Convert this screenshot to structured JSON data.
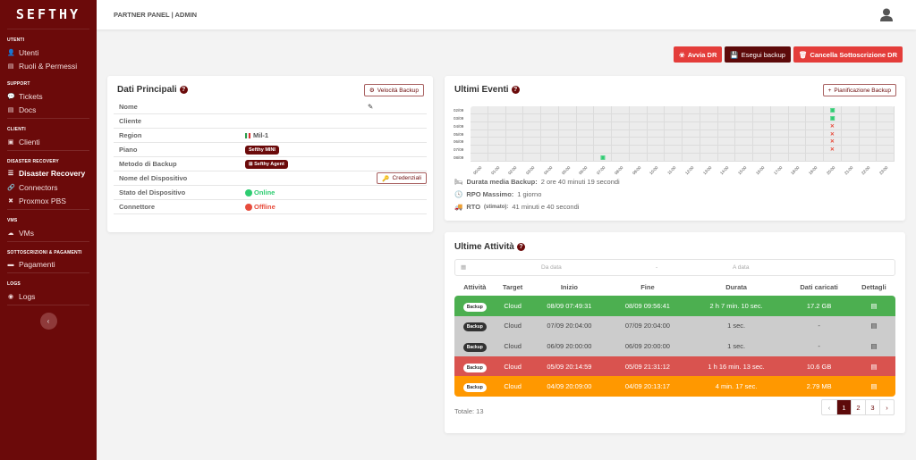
{
  "app": {
    "logo": "SEFTHY",
    "header": "PARTNER PANEL | ADMIN"
  },
  "sidebar": {
    "collapse": "‹",
    "sections": [
      {
        "title": "UTENTI",
        "items": [
          {
            "label": "Utenti",
            "icon": "user-icon",
            "g": "👤"
          },
          {
            "label": "Ruoli & Permessi",
            "icon": "book-icon",
            "g": "▤"
          }
        ]
      },
      {
        "title": "SUPPORT",
        "items": [
          {
            "label": "Tickets",
            "icon": "chat-icon",
            "g": "💬"
          },
          {
            "label": "Docs",
            "icon": "book-icon",
            "g": "▤"
          }
        ]
      },
      {
        "title": "CLIENTI",
        "items": [
          {
            "label": "Clienti",
            "icon": "contact-icon",
            "g": "▣"
          }
        ]
      },
      {
        "title": "DISASTER RECOVERY",
        "items": [
          {
            "label": "Disaster Recovery",
            "icon": "list-icon",
            "g": "☰",
            "active": true
          },
          {
            "label": "Connectors",
            "icon": "link-icon",
            "g": "🔗"
          },
          {
            "label": "Proxmox PBS",
            "icon": "proxmox-icon",
            "g": "✖"
          }
        ]
      },
      {
        "title": "VMS",
        "items": [
          {
            "label": "VMs",
            "icon": "cloud-icon",
            "g": "☁"
          }
        ]
      },
      {
        "title": "SOTTOSCRIZIONI & PAGAMENTI",
        "items": [
          {
            "label": "Pagamenti",
            "icon": "money-icon",
            "g": "▬"
          }
        ]
      },
      {
        "title": "LOGS",
        "items": [
          {
            "label": "Logs",
            "icon": "eye-icon",
            "g": "◉"
          }
        ]
      }
    ]
  },
  "actions": {
    "avvia": "Avvia DR",
    "esegui": "Esegui backup",
    "cancella": "Cancella Sottoscrizione DR"
  },
  "dati": {
    "title": "Dati Principali",
    "speed_btn": "Velocità Backup",
    "cred_btn": "Credenziali",
    "rows": {
      "nome": "Nome",
      "cliente": "Cliente",
      "region": "Region",
      "region_val": "Mil-1",
      "piano": "Piano",
      "piano_val": "Sefthy MINI",
      "metodo": "Metodo di Backup",
      "metodo_val": "Sefthy Agent",
      "dispositivo": "Nome del Dispositivo",
      "stato": "Stato del Dispositivo",
      "stato_val": "Online",
      "connettore": "Connettore",
      "connettore_val": "Offline"
    }
  },
  "eventi": {
    "title": "Ultimi Eventi",
    "plan_btn": "Pianificazione Backup",
    "stats": {
      "durata_label": "Durata media Backup:",
      "durata": "2 ore 40 minuti 19 secondi",
      "rpo_label": "RPO Massimo:",
      "rpo": "1 giorno",
      "rto_label": "RTO",
      "rto_sub": "(stimato):",
      "rto": "41 minuti e 40 secondi"
    }
  },
  "chart_data": {
    "type": "heatmap",
    "rows": [
      "02/09",
      "03/09",
      "04/09",
      "05/09",
      "06/09",
      "07/09",
      "08/09"
    ],
    "columns": [
      "00:00",
      "01:00",
      "02:00",
      "03:00",
      "04:00",
      "05:00",
      "06:00",
      "07:00",
      "08:00",
      "09:00",
      "10:00",
      "11:00",
      "12:00",
      "13:00",
      "14:00",
      "15:00",
      "16:00",
      "17:00",
      "18:00",
      "19:00",
      "20:00",
      "21:00",
      "22:00",
      "23:00"
    ],
    "events": [
      {
        "date": "02/09",
        "hour": "20:00",
        "status": "success"
      },
      {
        "date": "03/09",
        "hour": "20:00",
        "status": "success"
      },
      {
        "date": "04/09",
        "hour": "20:00",
        "status": "failed"
      },
      {
        "date": "05/09",
        "hour": "20:00",
        "status": "failed"
      },
      {
        "date": "06/09",
        "hour": "20:00",
        "status": "failed"
      },
      {
        "date": "07/09",
        "hour": "20:00",
        "status": "failed"
      },
      {
        "date": "08/09",
        "hour": "07:00",
        "status": "success"
      }
    ]
  },
  "attivita": {
    "title": "Ultime Attività",
    "from_ph": "Da data",
    "sep": "-",
    "to_ph": "A data",
    "headers": [
      "Attività",
      "Target",
      "Inizio",
      "Fine",
      "Durata",
      "Dati caricati",
      "Dettagli"
    ],
    "rows": [
      {
        "a": "Backup",
        "t": "Cloud",
        "i": "08/09 07:49:31",
        "f": "08/09 09:56:41",
        "d": "2 h 7 min. 10 sec.",
        "s": "17.2 GB",
        "color": "#4caf50"
      },
      {
        "a": "Backup",
        "t": "Cloud",
        "i": "07/09 20:04:00",
        "f": "07/09 20:04:00",
        "d": "1 sec.",
        "s": "-",
        "color": "#cccccc"
      },
      {
        "a": "Backup",
        "t": "Cloud",
        "i": "06/09 20:00:00",
        "f": "06/09 20:00:00",
        "d": "1 sec.",
        "s": "-",
        "color": "#cccccc"
      },
      {
        "a": "Backup",
        "t": "Cloud",
        "i": "05/09 20:14:59",
        "f": "05/09 21:31:12",
        "d": "1 h 16 min. 13 sec.",
        "s": "10.6 GB",
        "color": "#d9534f"
      },
      {
        "a": "Backup",
        "t": "Cloud",
        "i": "04/09 20:09:00",
        "f": "04/09 20:13:17",
        "d": "4 min. 17 sec.",
        "s": "2.79 MB",
        "color": "#ff9800"
      }
    ],
    "total": "Totale: 13",
    "pages": [
      "‹",
      "1",
      "2",
      "3",
      "›"
    ]
  }
}
